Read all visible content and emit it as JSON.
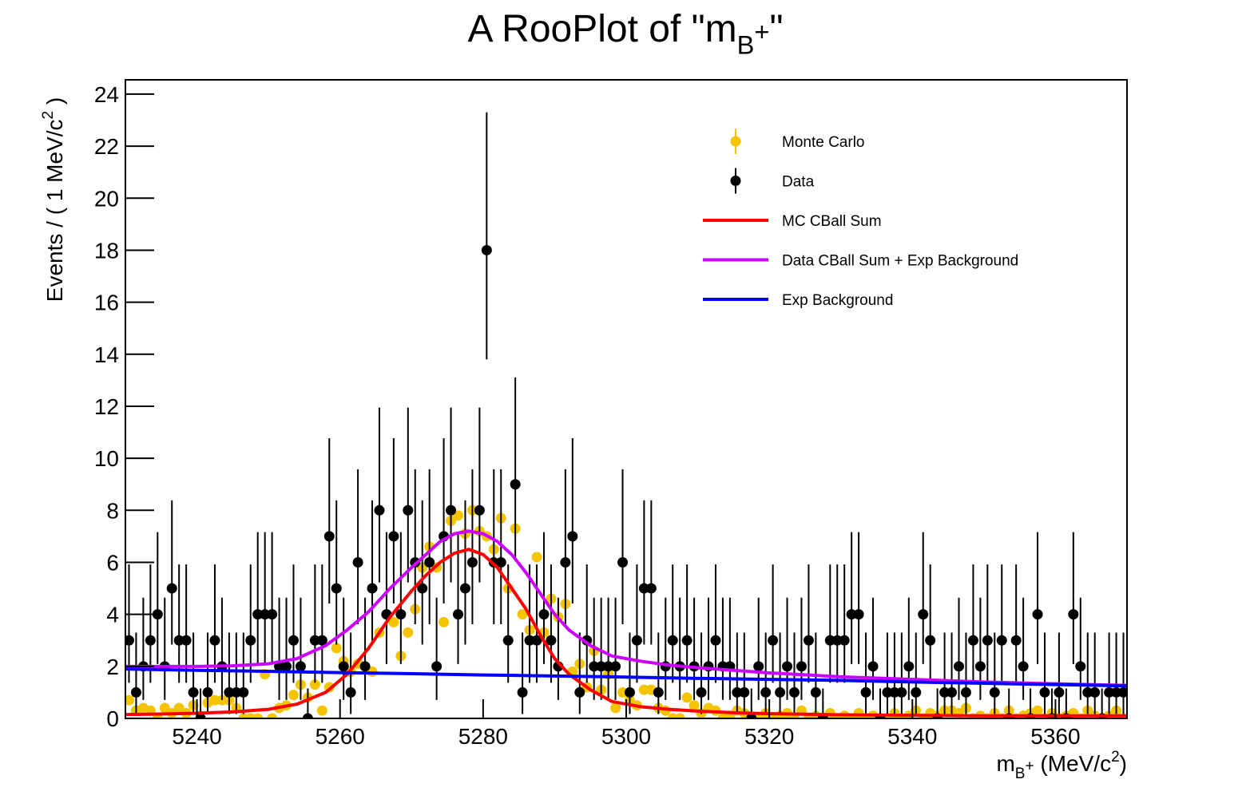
{
  "chart_data": {
    "type": "rooplot",
    "title": [
      {
        "text": "A RooPlot of \"m"
      },
      {
        "text": "B",
        "shift": "sub"
      },
      {
        "text": "+",
        "shift": "subsup"
      },
      {
        "text": "\""
      }
    ],
    "x_label": [
      {
        "text": "m"
      },
      {
        "text": "B",
        "shift": "sub"
      },
      {
        "text": "+",
        "shift": "subsup"
      },
      {
        "text": " (MeV/c"
      },
      {
        "text": "2",
        "shift": "sup"
      },
      {
        "text": ")"
      }
    ],
    "y_label": [
      {
        "text": "Events / ( 1 MeV/c"
      },
      {
        "text": "2",
        "shift": "sup"
      },
      {
        "text": " )"
      }
    ],
    "xlim": [
      5230,
      5370
    ],
    "ylim": [
      0,
      24.55
    ],
    "xticks": [
      5240,
      5260,
      5280,
      5300,
      5320,
      5340,
      5360
    ],
    "yticks": [
      0,
      2,
      4,
      6,
      8,
      10,
      12,
      14,
      16,
      18,
      20,
      22,
      24
    ],
    "x": [
      5230.5,
      5231.5,
      5232.5,
      5233.5,
      5234.5,
      5235.5,
      5236.5,
      5237.5,
      5238.5,
      5239.5,
      5240.5,
      5241.5,
      5242.5,
      5243.5,
      5244.5,
      5245.5,
      5246.5,
      5247.5,
      5248.5,
      5249.5,
      5250.5,
      5251.5,
      5252.5,
      5253.5,
      5254.5,
      5255.5,
      5256.5,
      5257.5,
      5258.5,
      5259.5,
      5260.5,
      5261.5,
      5262.5,
      5263.5,
      5264.5,
      5265.5,
      5266.5,
      5267.5,
      5268.5,
      5269.5,
      5270.5,
      5271.5,
      5272.5,
      5273.5,
      5274.5,
      5275.5,
      5276.5,
      5277.5,
      5278.5,
      5279.5,
      5280.5,
      5281.5,
      5282.5,
      5283.5,
      5284.5,
      5285.5,
      5286.5,
      5287.5,
      5288.5,
      5289.5,
      5290.5,
      5291.5,
      5292.5,
      5293.5,
      5294.5,
      5295.5,
      5296.5,
      5297.5,
      5298.5,
      5299.5,
      5300.5,
      5301.5,
      5302.5,
      5303.5,
      5304.5,
      5305.5,
      5306.5,
      5307.5,
      5308.5,
      5309.5,
      5310.5,
      5311.5,
      5312.5,
      5313.5,
      5314.5,
      5315.5,
      5316.5,
      5317.5,
      5318.5,
      5319.5,
      5320.5,
      5321.5,
      5322.5,
      5323.5,
      5324.5,
      5325.5,
      5326.5,
      5327.5,
      5328.5,
      5329.5,
      5330.5,
      5331.5,
      5332.5,
      5333.5,
      5334.5,
      5335.5,
      5336.5,
      5337.5,
      5338.5,
      5339.5,
      5340.5,
      5341.5,
      5342.5,
      5343.5,
      5344.5,
      5345.5,
      5346.5,
      5347.5,
      5348.5,
      5349.5,
      5350.5,
      5351.5,
      5352.5,
      5353.5,
      5354.5,
      5355.5,
      5356.5,
      5357.5,
      5358.5,
      5359.5,
      5360.5,
      5361.5,
      5362.5,
      5363.5,
      5364.5,
      5365.5,
      5366.5,
      5367.5,
      5368.5,
      5369.5
    ],
    "series": [
      {
        "name": "Monte Carlo",
        "style": "points",
        "color": "#f5c400",
        "values": [
          0.7,
          0.3,
          0.4,
          0.3,
          0,
          0.4,
          0.2,
          0.4,
          0.2,
          0.5,
          0,
          0.6,
          0.7,
          0.7,
          0.7,
          0.4,
          0,
          0,
          0,
          1.7,
          0,
          0.4,
          0.5,
          0.9,
          1.3,
          0.8,
          1.3,
          0.3,
          1.2,
          2.7,
          2.2,
          1.8,
          2.1,
          2.0,
          1.8,
          3.3,
          4.0,
          3.7,
          2.4,
          3.3,
          4.2,
          5.8,
          6.6,
          5.8,
          3.7,
          7.6,
          7.8,
          7.1,
          8.0,
          7.2,
          7.0,
          6.5,
          7.7,
          5.0,
          7.3,
          4.0,
          3.4,
          6.2,
          3.3,
          4.6,
          3.9,
          4.4,
          1.8,
          2.1,
          1.2,
          2.6,
          1.1,
          1.7,
          0.4,
          1.0,
          0.7,
          0.5,
          1.1,
          1.1,
          0.4,
          0.3,
          0,
          0,
          0.8,
          0.5,
          0.2,
          0.4,
          0.3,
          0,
          0.1,
          0.3,
          0.2,
          0,
          0,
          0.2,
          0,
          0.1,
          0.2,
          0,
          0.3,
          0,
          0.1,
          0,
          0.2,
          0,
          0.1,
          0,
          0.2,
          0,
          0.1,
          0,
          0,
          0.2,
          0,
          0.1,
          0.3,
          0,
          0.2,
          0.1,
          0.3,
          0.3,
          0.2,
          0.4,
          0,
          0.1,
          0,
          0.2,
          0,
          0.3,
          0,
          0.1,
          0.2,
          0.3,
          0,
          0.2,
          0,
          0.1,
          0.2,
          0,
          0.3,
          0.1,
          0,
          0.1,
          0.3,
          0
        ]
      },
      {
        "name": "Data",
        "style": "points",
        "color": "#000000",
        "values": [
          3,
          1,
          2,
          3,
          4,
          2,
          5,
          3,
          3,
          1,
          0,
          1,
          3,
          2,
          1,
          1,
          1,
          3,
          4,
          4,
          4,
          2,
          2,
          3,
          2,
          0,
          3,
          3,
          7,
          5,
          2,
          1,
          6,
          2,
          5,
          8,
          4,
          7,
          4,
          8,
          6,
          5,
          6,
          2,
          7,
          8,
          4,
          5,
          6,
          8,
          18,
          6,
          6,
          3,
          9,
          1,
          3,
          3,
          4,
          3,
          2,
          6,
          7,
          1,
          3,
          2,
          2,
          2,
          2,
          6,
          1,
          3,
          5,
          5,
          1,
          2,
          3,
          2,
          3,
          2,
          1,
          2,
          3,
          2,
          2,
          1,
          1,
          0,
          2,
          1,
          3,
          1,
          2,
          1,
          2,
          3,
          1,
          0,
          3,
          3,
          3,
          4,
          4,
          1,
          2,
          0,
          1,
          1,
          1,
          2,
          1,
          4,
          3,
          0,
          1,
          1,
          2,
          1,
          3,
          2,
          3,
          1,
          3,
          0,
          3,
          2,
          0,
          4,
          1,
          0,
          1,
          0,
          4,
          2,
          1,
          1,
          0,
          1,
          1,
          1
        ],
        "errors_low": [
          1.63,
          0.83,
          1.29,
          1.63,
          1.91,
          1.29,
          2.16,
          1.63,
          1.63,
          0.83,
          0,
          0.83,
          1.63,
          1.29,
          0.83,
          0.83,
          0.83,
          1.63,
          1.91,
          1.91,
          1.91,
          1.29,
          1.29,
          1.63,
          1.29,
          0,
          1.63,
          1.63,
          2.58,
          2.16,
          1.29,
          0.83,
          2.38,
          1.29,
          2.16,
          2.77,
          1.91,
          2.58,
          1.91,
          2.77,
          2.38,
          2.16,
          2.38,
          1.29,
          2.58,
          2.77,
          1.91,
          2.16,
          2.38,
          2.77,
          4.2,
          2.38,
          2.38,
          1.63,
          2.94,
          0.83,
          1.63,
          1.63,
          1.91,
          1.63,
          1.29,
          2.38,
          2.58,
          0.83,
          1.63,
          1.29,
          1.29,
          1.29,
          1.29,
          2.38,
          0.83,
          1.63,
          2.16,
          2.16,
          0.83,
          1.29,
          1.63,
          1.29,
          1.63,
          1.29,
          0.83,
          1.29,
          1.63,
          1.29,
          1.29,
          0.83,
          0.83,
          0,
          1.29,
          0.83,
          1.63,
          0.83,
          1.29,
          0.83,
          1.29,
          1.63,
          0.83,
          0,
          1.63,
          1.63,
          1.63,
          1.91,
          1.91,
          0.83,
          1.29,
          0,
          0.83,
          0.83,
          0.83,
          1.29,
          0.83,
          1.91,
          1.63,
          0,
          0.83,
          0.83,
          1.29,
          0.83,
          1.63,
          1.29,
          1.63,
          0.83,
          1.63,
          0,
          1.63,
          1.29,
          0,
          1.91,
          0.83,
          0,
          0.83,
          0,
          1.91,
          1.29,
          0.83,
          0.83,
          0,
          0.83,
          0.83,
          0.83
        ],
        "errors_high": [
          2.92,
          2.3,
          2.64,
          2.92,
          3.16,
          2.64,
          3.38,
          2.92,
          2.92,
          2.3,
          1.15,
          2.3,
          2.92,
          2.64,
          2.3,
          2.3,
          2.3,
          2.92,
          3.16,
          3.16,
          3.16,
          2.64,
          2.64,
          2.92,
          2.64,
          1.15,
          2.92,
          2.92,
          3.77,
          3.38,
          2.64,
          2.3,
          3.58,
          2.64,
          3.38,
          3.95,
          3.16,
          3.77,
          3.16,
          3.95,
          3.58,
          3.38,
          3.58,
          2.64,
          3.77,
          3.95,
          3.16,
          3.38,
          3.58,
          3.95,
          5.3,
          3.58,
          3.58,
          2.92,
          4.11,
          2.3,
          2.92,
          2.92,
          3.16,
          2.92,
          2.64,
          3.58,
          3.77,
          2.3,
          2.92,
          2.64,
          2.64,
          2.64,
          2.64,
          3.58,
          2.3,
          2.92,
          3.38,
          3.38,
          2.3,
          2.64,
          2.92,
          2.64,
          2.92,
          2.64,
          2.3,
          2.64,
          2.92,
          2.64,
          2.64,
          2.3,
          2.3,
          1.15,
          2.64,
          2.3,
          2.92,
          2.3,
          2.64,
          2.3,
          2.64,
          2.92,
          2.3,
          1.15,
          2.92,
          2.92,
          2.92,
          3.16,
          3.16,
          2.3,
          2.64,
          1.15,
          2.3,
          2.3,
          2.3,
          2.64,
          2.3,
          3.16,
          2.92,
          1.15,
          2.3,
          2.3,
          2.64,
          2.3,
          2.92,
          2.64,
          2.92,
          2.3,
          2.92,
          1.15,
          2.92,
          2.64,
          1.15,
          3.16,
          2.3,
          1.15,
          2.3,
          1.15,
          3.16,
          2.64,
          2.3,
          2.3,
          1.15,
          2.3,
          2.3,
          2.3
        ]
      },
      {
        "name": "MC CBall Sum",
        "style": "line",
        "color": "#ff0000",
        "x": [
          5230,
          5235,
          5240,
          5245,
          5250,
          5254,
          5258,
          5261,
          5264,
          5267,
          5270,
          5272,
          5274,
          5276,
          5278,
          5280,
          5282,
          5284,
          5286,
          5288,
          5290,
          5292,
          5295,
          5298,
          5302,
          5306,
          5310,
          5315,
          5320,
          5330,
          5340,
          5350,
          5360,
          5370
        ],
        "values": [
          0.15,
          0.17,
          0.2,
          0.25,
          0.35,
          0.55,
          1.0,
          1.7,
          2.7,
          3.9,
          4.9,
          5.5,
          6.0,
          6.35,
          6.5,
          6.3,
          5.8,
          5.0,
          4.2,
          3.2,
          2.3,
          1.7,
          1.1,
          0.65,
          0.45,
          0.35,
          0.28,
          0.22,
          0.18,
          0.14,
          0.12,
          0.1,
          0.1,
          0.1
        ]
      },
      {
        "name": "Data CBall Sum + Exp Background",
        "style": "line",
        "color": "#cc00ff",
        "x": [
          5230,
          5235,
          5240,
          5245,
          5250,
          5254,
          5258,
          5261,
          5264,
          5267,
          5270,
          5272,
          5274,
          5276,
          5278,
          5280,
          5282,
          5284,
          5286,
          5288,
          5290,
          5292,
          5295,
          5298,
          5302,
          5306,
          5310,
          5315,
          5320,
          5330,
          5340,
          5350,
          5360,
          5370
        ],
        "values": [
          2.0,
          2.0,
          2.0,
          2.02,
          2.1,
          2.3,
          2.8,
          3.4,
          4.1,
          5.0,
          5.8,
          6.3,
          6.8,
          7.1,
          7.2,
          7.1,
          6.8,
          6.3,
          5.6,
          4.8,
          4.0,
          3.4,
          2.8,
          2.4,
          2.2,
          2.05,
          1.95,
          1.85,
          1.75,
          1.6,
          1.5,
          1.4,
          1.33,
          1.27
        ]
      },
      {
        "name": "Exp Background",
        "style": "line",
        "color": "#0000ff",
        "x": [
          5230,
          5240,
          5250,
          5260,
          5270,
          5280,
          5290,
          5300,
          5310,
          5320,
          5330,
          5340,
          5350,
          5360,
          5370
        ],
        "values": [
          1.9,
          1.85,
          1.81,
          1.76,
          1.72,
          1.67,
          1.63,
          1.59,
          1.54,
          1.5,
          1.46,
          1.4,
          1.35,
          1.3,
          1.25
        ]
      }
    ]
  }
}
